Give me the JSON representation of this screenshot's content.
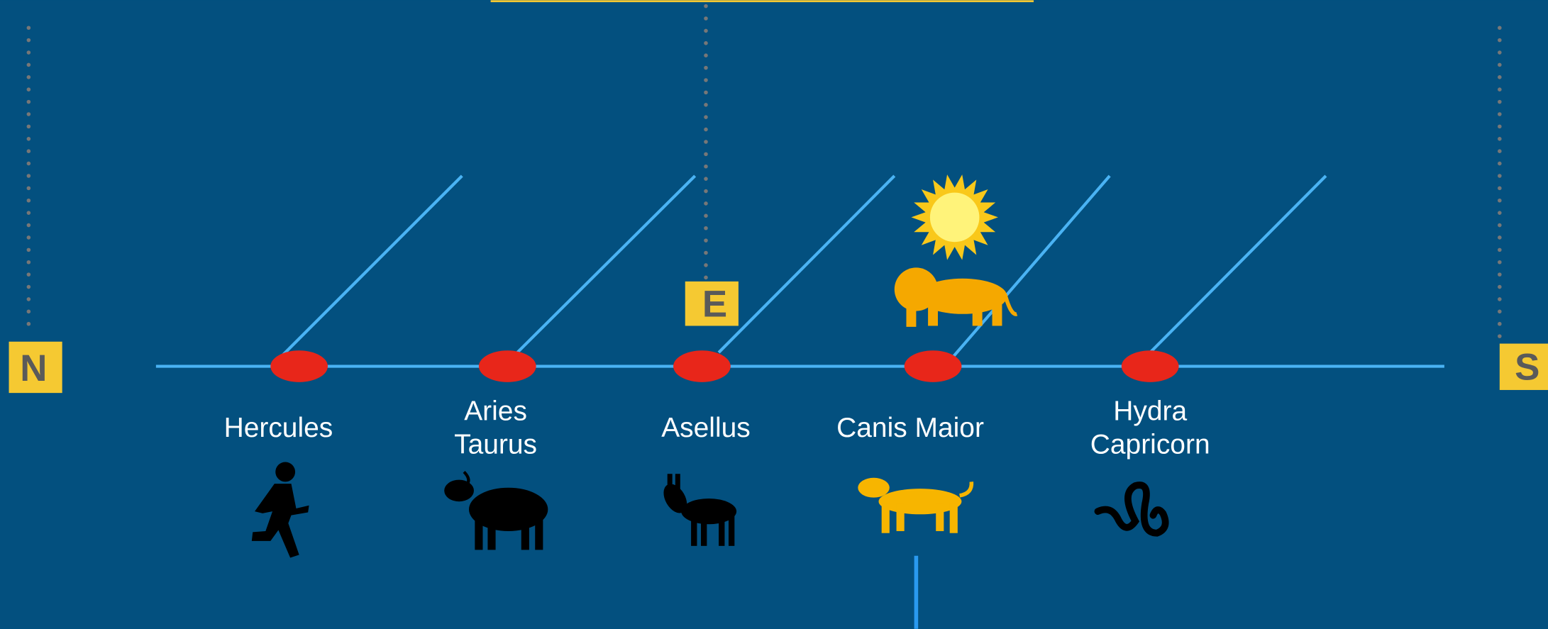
{
  "markers": {
    "north": "N",
    "east": "E",
    "south": "S"
  },
  "nodes": [
    {
      "label": [
        "Hercules"
      ]
    },
    {
      "label": [
        "Aries",
        "Taurus"
      ]
    },
    {
      "label": [
        "Asellus"
      ]
    },
    {
      "label": [
        "Canis Maior"
      ]
    },
    {
      "label": [
        "Hydra",
        "Capricorn"
      ]
    }
  ]
}
